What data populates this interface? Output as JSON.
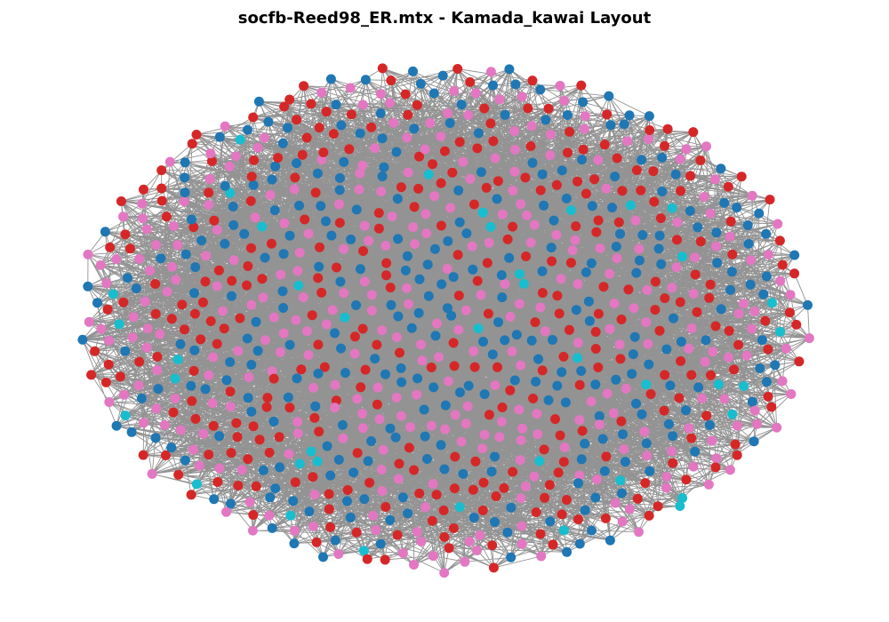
{
  "title": "socfb-Reed98_ER.mtx - Kamada_kawai Layout",
  "graph": {
    "layout": "kamada_kawai",
    "node_count_estimate": 962,
    "edge_color": "#808080",
    "node_colors": [
      "#1f77b4",
      "#d62728",
      "#e377c2",
      "#17becf"
    ],
    "node_color_weights": [
      0.32,
      0.32,
      0.32,
      0.04
    ],
    "background": "#ffffff",
    "node_labels_visible": false,
    "axes_visible": false
  }
}
